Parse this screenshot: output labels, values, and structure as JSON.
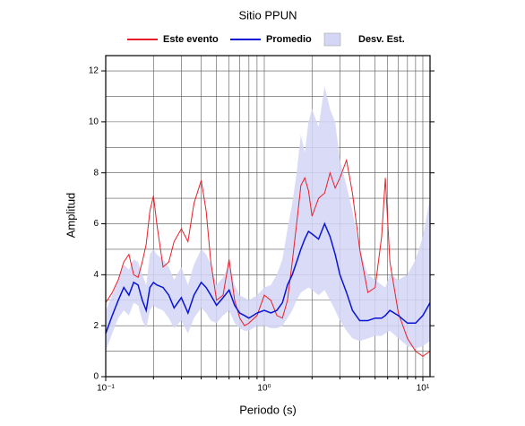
{
  "chart_data": {
    "type": "line",
    "title": "Sitio PPUN",
    "xlabel": "Periodo (s)",
    "ylabel": "Amplitud",
    "xscale": "log",
    "grid": true,
    "xlim": [
      0.1,
      11.1
    ],
    "ylim": [
      0,
      12.6
    ],
    "xticks": [
      {
        "value": 0.1,
        "label": "10⁻¹"
      },
      {
        "value": 1,
        "label": "10⁰"
      },
      {
        "value": 10,
        "label": "10¹"
      }
    ],
    "xminor": [
      0.2,
      0.3,
      0.4,
      0.5,
      0.6,
      0.7,
      0.8,
      0.9,
      2,
      3,
      4,
      5,
      6,
      7,
      8,
      9
    ],
    "yticks": [
      0,
      2,
      4,
      6,
      8,
      10,
      12
    ],
    "yminor": [
      1,
      3,
      5,
      7,
      9,
      11
    ],
    "x": [
      0.1,
      0.11,
      0.12,
      0.13,
      0.14,
      0.15,
      0.16,
      0.17,
      0.18,
      0.19,
      0.2,
      0.21,
      0.23,
      0.25,
      0.27,
      0.3,
      0.33,
      0.36,
      0.4,
      0.43,
      0.46,
      0.5,
      0.55,
      0.6,
      0.65,
      0.7,
      0.75,
      0.8,
      0.9,
      1.0,
      1.1,
      1.2,
      1.3,
      1.4,
      1.5,
      1.6,
      1.7,
      1.8,
      1.9,
      2.0,
      2.2,
      2.4,
      2.6,
      2.8,
      3.0,
      3.3,
      3.6,
      4.0,
      4.5,
      5.0,
      5.5,
      5.8,
      6.2,
      7.0,
      8.0,
      9.0,
      10.0,
      11.1
    ],
    "band": {
      "name": "Desv. Est.",
      "color": "#d4d6f6",
      "upper": [
        2.6,
        3.2,
        3.8,
        4.4,
        4.2,
        4.6,
        4.5,
        4.0,
        3.6,
        4.8,
        5.0,
        4.8,
        4.6,
        4.3,
        3.8,
        4.3,
        3.6,
        4.4,
        5.0,
        4.8,
        4.4,
        3.6,
        3.9,
        4.4,
        3.6,
        3.2,
        3.1,
        3.0,
        3.2,
        3.5,
        3.6,
        4.0,
        4.6,
        5.8,
        6.8,
        8.0,
        9.5,
        8.8,
        10.0,
        10.5,
        9.8,
        11.4,
        10.5,
        10.0,
        8.5,
        7.5,
        6.5,
        5.0,
        4.0,
        3.8,
        3.6,
        3.5,
        4.0,
        3.8,
        4.0,
        4.6,
        5.5,
        7.0
      ],
      "lower": [
        1.0,
        1.7,
        2.3,
        2.6,
        2.4,
        2.9,
        2.8,
        2.2,
        1.9,
        2.6,
        2.8,
        2.7,
        2.6,
        2.3,
        1.9,
        2.2,
        1.7,
        2.3,
        2.7,
        2.5,
        2.2,
        2.1,
        2.4,
        2.6,
        2.1,
        1.9,
        1.8,
        1.8,
        2.0,
        2.0,
        1.9,
        1.9,
        2.0,
        2.3,
        2.6,
        3.0,
        3.3,
        3.4,
        3.5,
        3.4,
        3.2,
        3.4,
        3.0,
        2.6,
        2.2,
        1.8,
        1.5,
        1.4,
        1.5,
        1.6,
        1.6,
        1.7,
        1.8,
        1.5,
        1.2,
        1.1,
        1.2,
        1.4
      ]
    },
    "series": [
      {
        "name": "Este evento",
        "color": "#e8202a",
        "values": [
          2.9,
          3.3,
          3.8,
          4.5,
          4.8,
          4.0,
          3.9,
          4.5,
          5.2,
          6.5,
          7.1,
          6.0,
          4.3,
          4.5,
          5.3,
          5.8,
          5.3,
          6.8,
          7.7,
          6.5,
          4.5,
          3.0,
          3.2,
          4.6,
          3.0,
          2.3,
          2.0,
          2.1,
          2.4,
          3.2,
          3.0,
          2.4,
          2.3,
          3.0,
          4.5,
          6.0,
          7.5,
          7.8,
          7.3,
          6.3,
          7.0,
          7.2,
          8.0,
          7.4,
          7.8,
          8.5,
          7.2,
          5.0,
          3.3,
          3.5,
          5.5,
          7.8,
          4.5,
          2.5,
          1.5,
          1.0,
          0.8,
          1.0
        ]
      },
      {
        "name": "Promedio",
        "color": "#0a14d6",
        "values": [
          1.7,
          2.4,
          3.0,
          3.5,
          3.2,
          3.7,
          3.6,
          3.0,
          2.6,
          3.5,
          3.7,
          3.6,
          3.5,
          3.2,
          2.7,
          3.1,
          2.5,
          3.2,
          3.7,
          3.5,
          3.2,
          2.8,
          3.1,
          3.4,
          2.8,
          2.5,
          2.4,
          2.3,
          2.5,
          2.6,
          2.5,
          2.6,
          2.9,
          3.6,
          4.0,
          4.5,
          5.0,
          5.4,
          5.7,
          5.6,
          5.4,
          6.0,
          5.5,
          4.8,
          4.0,
          3.3,
          2.6,
          2.2,
          2.2,
          2.3,
          2.3,
          2.4,
          2.6,
          2.4,
          2.1,
          2.1,
          2.4,
          2.9
        ]
      }
    ]
  }
}
